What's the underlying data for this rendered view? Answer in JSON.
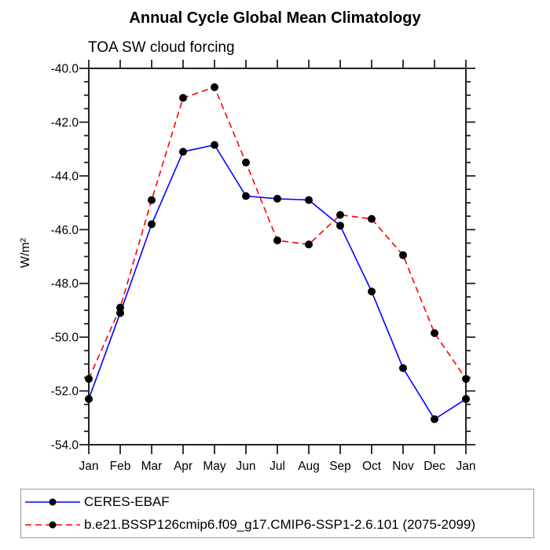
{
  "chart_data": {
    "type": "line",
    "title": "Annual Cycle Global Mean Climatology",
    "subtitle": "TOA SW cloud forcing",
    "ylabel": "W/m²",
    "xlabel": "",
    "categories": [
      "Jan",
      "Feb",
      "Mar",
      "Apr",
      "May",
      "Jun",
      "Jul",
      "Aug",
      "Sep",
      "Oct",
      "Nov",
      "Dec",
      "Jan"
    ],
    "ylim": [
      -54.0,
      -40.0
    ],
    "ytick_major_interval": 2.0,
    "ytick_minor_interval": 0.5,
    "ytick_labels": [
      "-40.0",
      "-42.0",
      "-44.0",
      "-46.0",
      "-48.0",
      "-50.0",
      "-52.0",
      "-54.0"
    ],
    "grid": false,
    "legend_position": "bottom-left",
    "axis_color": "#222222",
    "series": [
      {
        "name": "CERES-EBAF",
        "color": "#0000ff",
        "line_style": "solid",
        "marker": "circle",
        "marker_color": "#000000",
        "values": [
          -52.3,
          -49.1,
          -45.8,
          -43.1,
          -42.85,
          -44.75,
          -44.85,
          -44.9,
          -45.85,
          -48.3,
          -51.15,
          -53.05,
          -52.3
        ]
      },
      {
        "name": "b.e21.BSSP126cmip6.f09_g17.CMIP6-SSP1-2.6.101 (2075-2099)",
        "color": "#ff0000",
        "line_style": "dashed",
        "marker": "circle",
        "marker_color": "#000000",
        "values": [
          -51.55,
          -48.9,
          -44.9,
          -41.1,
          -40.7,
          -43.5,
          -46.4,
          -46.55,
          -45.45,
          -45.6,
          -46.95,
          -49.85,
          -51.55
        ]
      }
    ]
  }
}
